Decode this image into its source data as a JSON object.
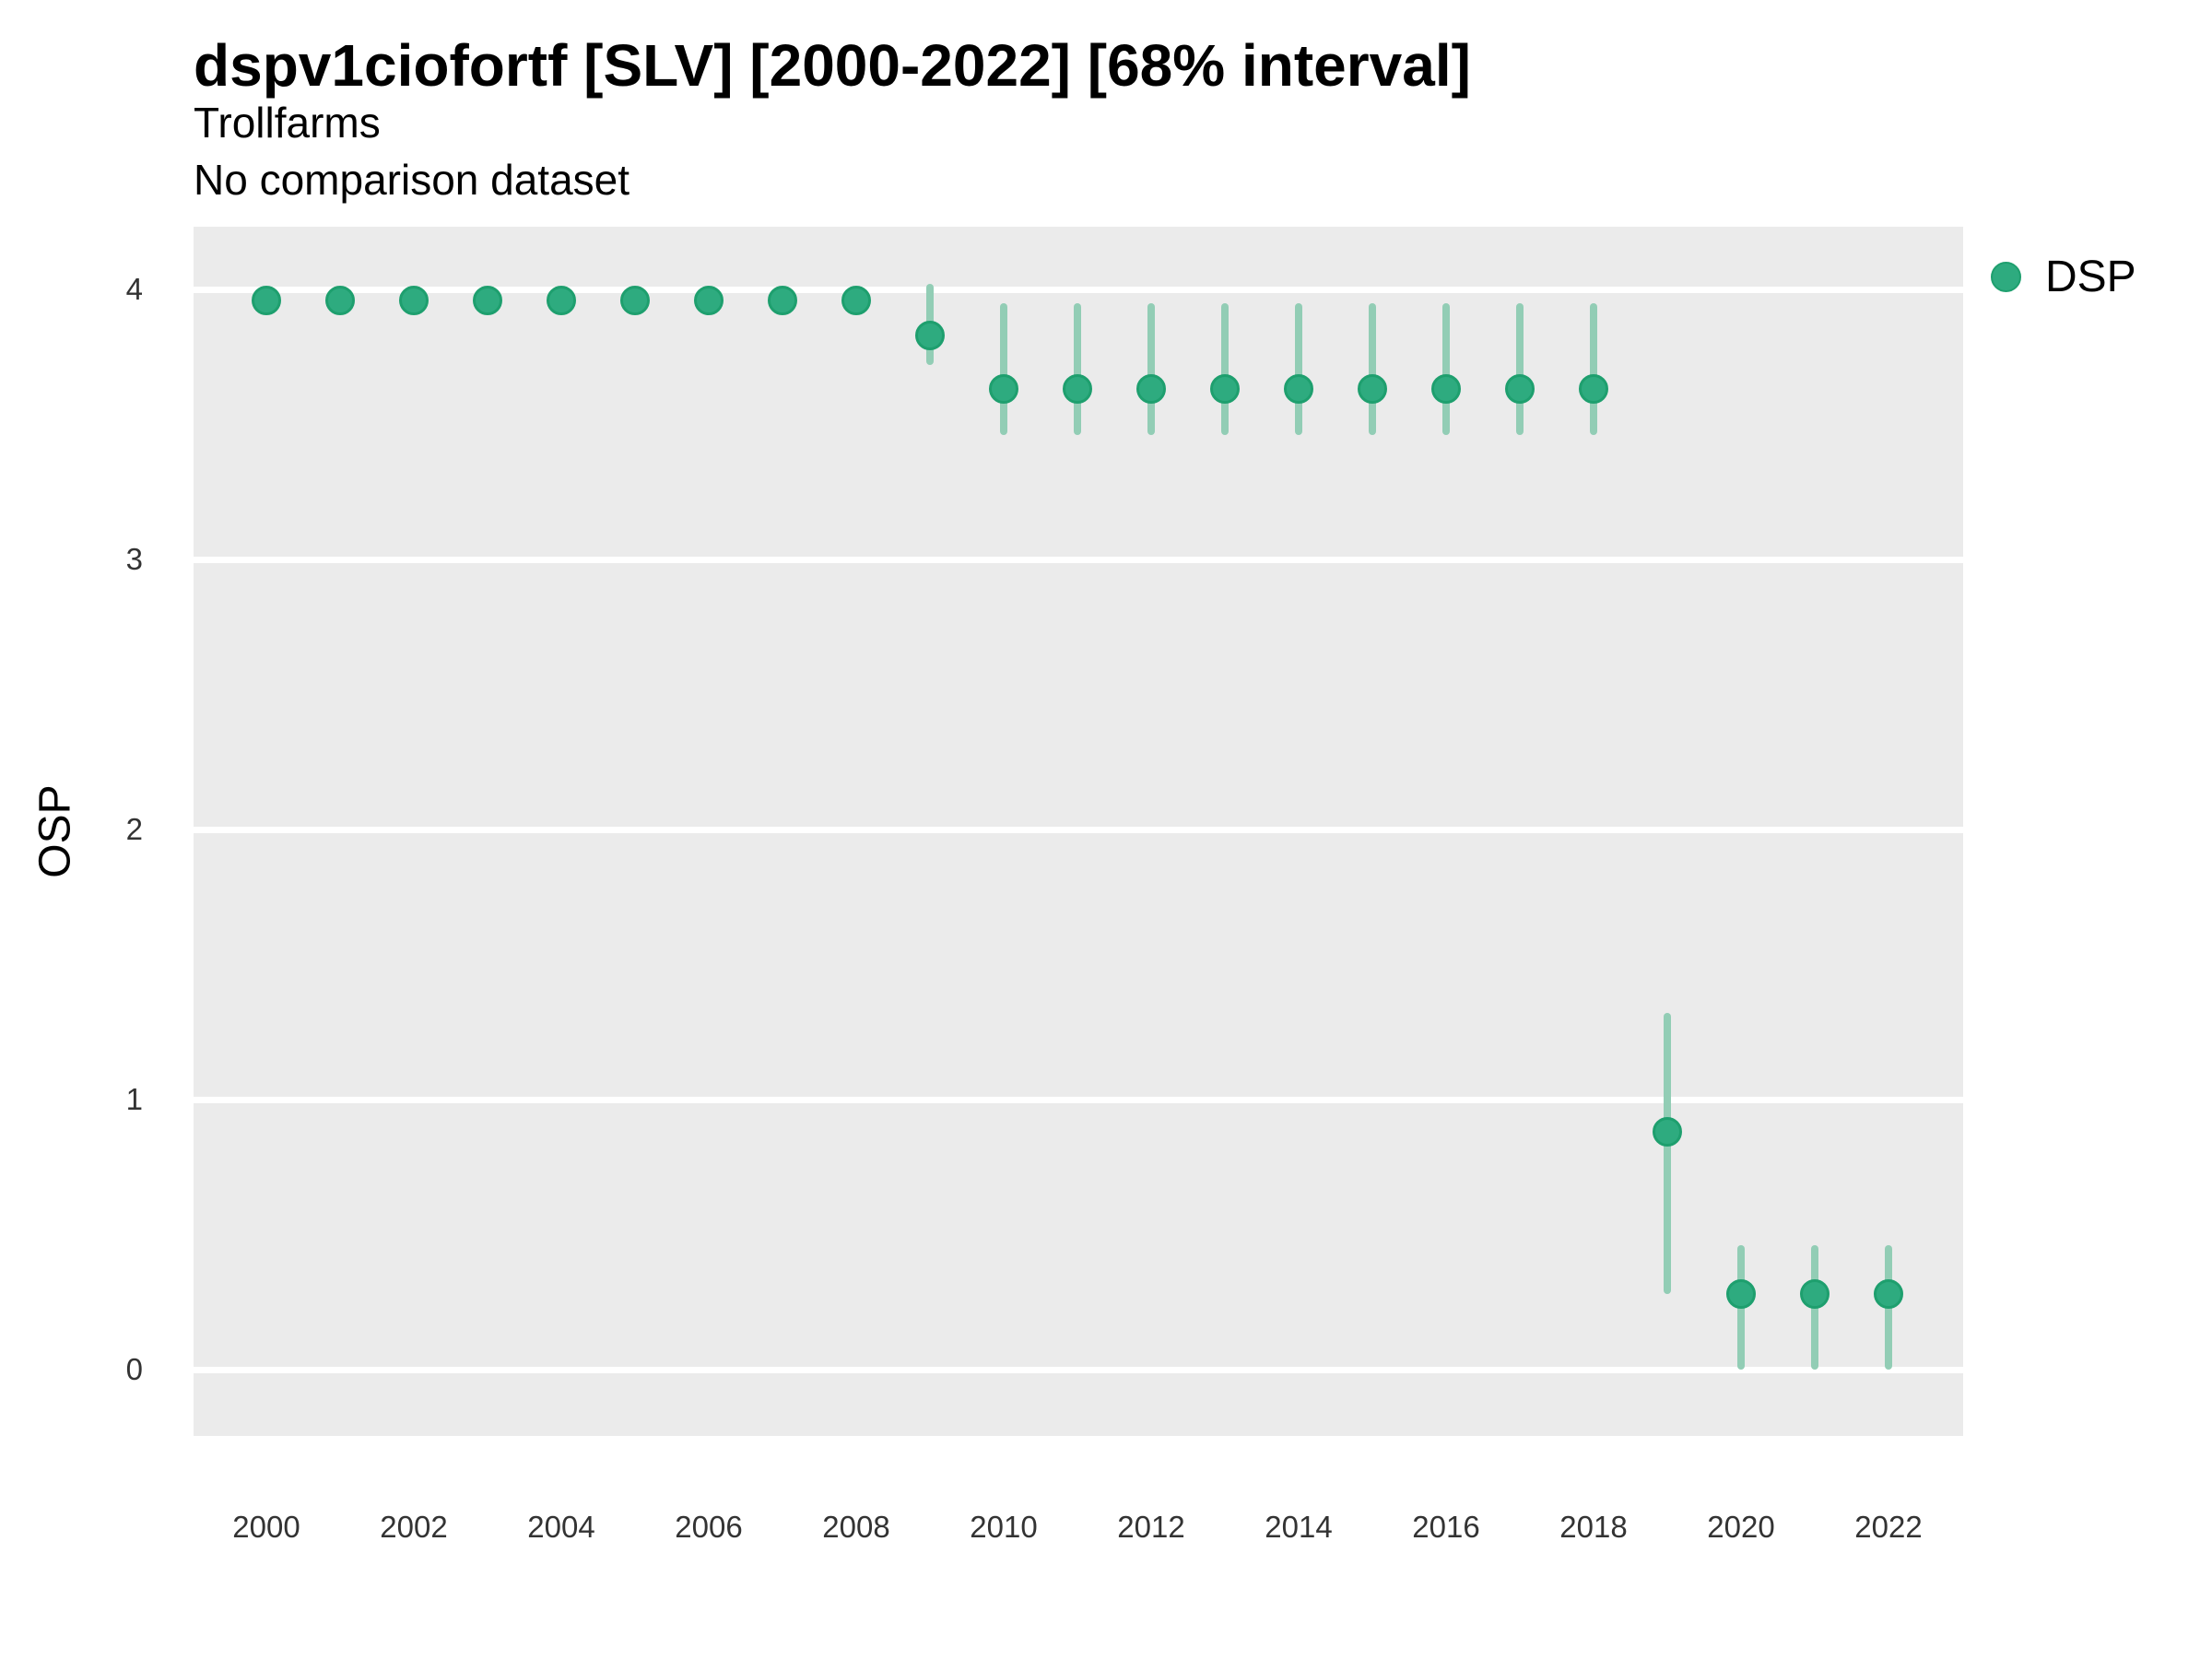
{
  "header": {
    "title": "dspv1ciofortf [SLV] [2000-2022] [68% interval]",
    "subtitle": "Trollfarms",
    "comparison": "No comparison dataset"
  },
  "legend": {
    "position": "right",
    "items": [
      {
        "label": "DSP",
        "color": "#2EAB7F"
      }
    ]
  },
  "colors": {
    "point_fill": "#2EAB7F",
    "point_border": "#1E9F6E",
    "interval_bar": "#92CDB5",
    "panel_background": "#EBEBEB",
    "gridline": "#FFFFFF",
    "tick_text": "#333333"
  },
  "chart_data": {
    "type": "scatter",
    "title": "dspv1ciofortf [SLV] [2000-2022] [68% interval]",
    "subtitle": "Trollfarms",
    "note": "No comparison dataset",
    "xlabel": "",
    "ylabel": "OSP",
    "interval_level": "68%",
    "grid": true,
    "legend_position": "right",
    "xlim": [
      1999,
      2023
    ],
    "ylim": [
      -0.25,
      4.23
    ],
    "xticks": [
      2000,
      2002,
      2004,
      2006,
      2008,
      2010,
      2012,
      2014,
      2016,
      2018,
      2020,
      2022
    ],
    "yticks": [
      0,
      1,
      2,
      3,
      4
    ],
    "series": [
      {
        "name": "DSP",
        "point_color": "#2EAB7F",
        "interval_color": "#92CDB5",
        "points": [
          {
            "x": 2000,
            "y": 3.96,
            "lo": null,
            "hi": null
          },
          {
            "x": 2001,
            "y": 3.96,
            "lo": null,
            "hi": null
          },
          {
            "x": 2002,
            "y": 3.96,
            "lo": null,
            "hi": null
          },
          {
            "x": 2003,
            "y": 3.96,
            "lo": null,
            "hi": null
          },
          {
            "x": 2004,
            "y": 3.96,
            "lo": null,
            "hi": null
          },
          {
            "x": 2005,
            "y": 3.96,
            "lo": null,
            "hi": null
          },
          {
            "x": 2006,
            "y": 3.96,
            "lo": null,
            "hi": null
          },
          {
            "x": 2007,
            "y": 3.96,
            "lo": null,
            "hi": null
          },
          {
            "x": 2008,
            "y": 3.96,
            "lo": null,
            "hi": null
          },
          {
            "x": 2009,
            "y": 3.83,
            "lo": 3.72,
            "hi": 4.02
          },
          {
            "x": 2010,
            "y": 3.63,
            "lo": 3.46,
            "hi": 3.95
          },
          {
            "x": 2011,
            "y": 3.63,
            "lo": 3.46,
            "hi": 3.95
          },
          {
            "x": 2012,
            "y": 3.63,
            "lo": 3.46,
            "hi": 3.95
          },
          {
            "x": 2013,
            "y": 3.63,
            "lo": 3.46,
            "hi": 3.95
          },
          {
            "x": 2014,
            "y": 3.63,
            "lo": 3.46,
            "hi": 3.95
          },
          {
            "x": 2015,
            "y": 3.63,
            "lo": 3.46,
            "hi": 3.95
          },
          {
            "x": 2016,
            "y": 3.63,
            "lo": 3.46,
            "hi": 3.95
          },
          {
            "x": 2017,
            "y": 3.63,
            "lo": 3.46,
            "hi": 3.95
          },
          {
            "x": 2018,
            "y": 3.63,
            "lo": 3.46,
            "hi": 3.95
          },
          {
            "x": 2019,
            "y": 0.88,
            "lo": 0.28,
            "hi": 1.32
          },
          {
            "x": 2020,
            "y": 0.28,
            "lo": 0.0,
            "hi": 0.46
          },
          {
            "x": 2021,
            "y": 0.28,
            "lo": 0.0,
            "hi": 0.46
          },
          {
            "x": 2022,
            "y": 0.28,
            "lo": 0.0,
            "hi": 0.46
          }
        ]
      }
    ]
  }
}
